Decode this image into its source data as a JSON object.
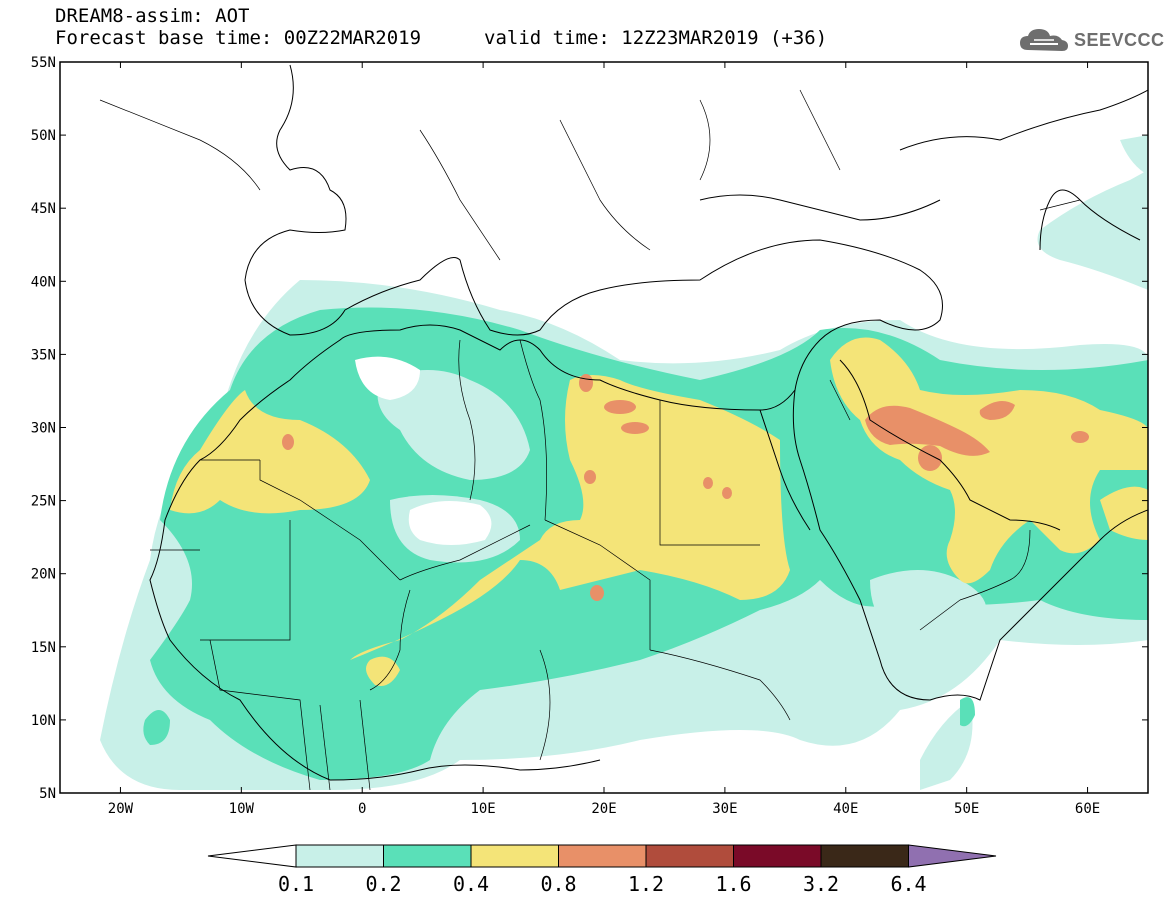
{
  "header": {
    "line1": "DREAM8-assim: AOT",
    "line2_base": "Forecast base time: 00Z22MAR2019",
    "line2_valid": "valid time: 12Z23MAR2019 (+36)"
  },
  "logo": {
    "text": "SEEVCCC",
    "icon": "cloud-icon",
    "color": "#6e6e6e"
  },
  "map": {
    "lon_range": [
      -25,
      65
    ],
    "lat_range": [
      5,
      55
    ],
    "x_ticks": [
      "20W",
      "10W",
      "0",
      "10E",
      "20E",
      "30E",
      "40E",
      "50E",
      "60E"
    ],
    "y_ticks": [
      "55N",
      "50N",
      "45N",
      "40N",
      "35N",
      "30N",
      "25N",
      "20N",
      "15N",
      "10N",
      "5N"
    ]
  },
  "legend": {
    "levels": [
      "0.1",
      "0.2",
      "0.4",
      "0.8",
      "1.2",
      "1.6",
      "3.2",
      "6.4"
    ],
    "colors": [
      "#ffffff",
      "#c8f0e8",
      "#5ae0b8",
      "#f4e478",
      "#e89068",
      "#b04c3c",
      "#7a0a28",
      "#3a2818",
      "#9070b0"
    ]
  }
}
